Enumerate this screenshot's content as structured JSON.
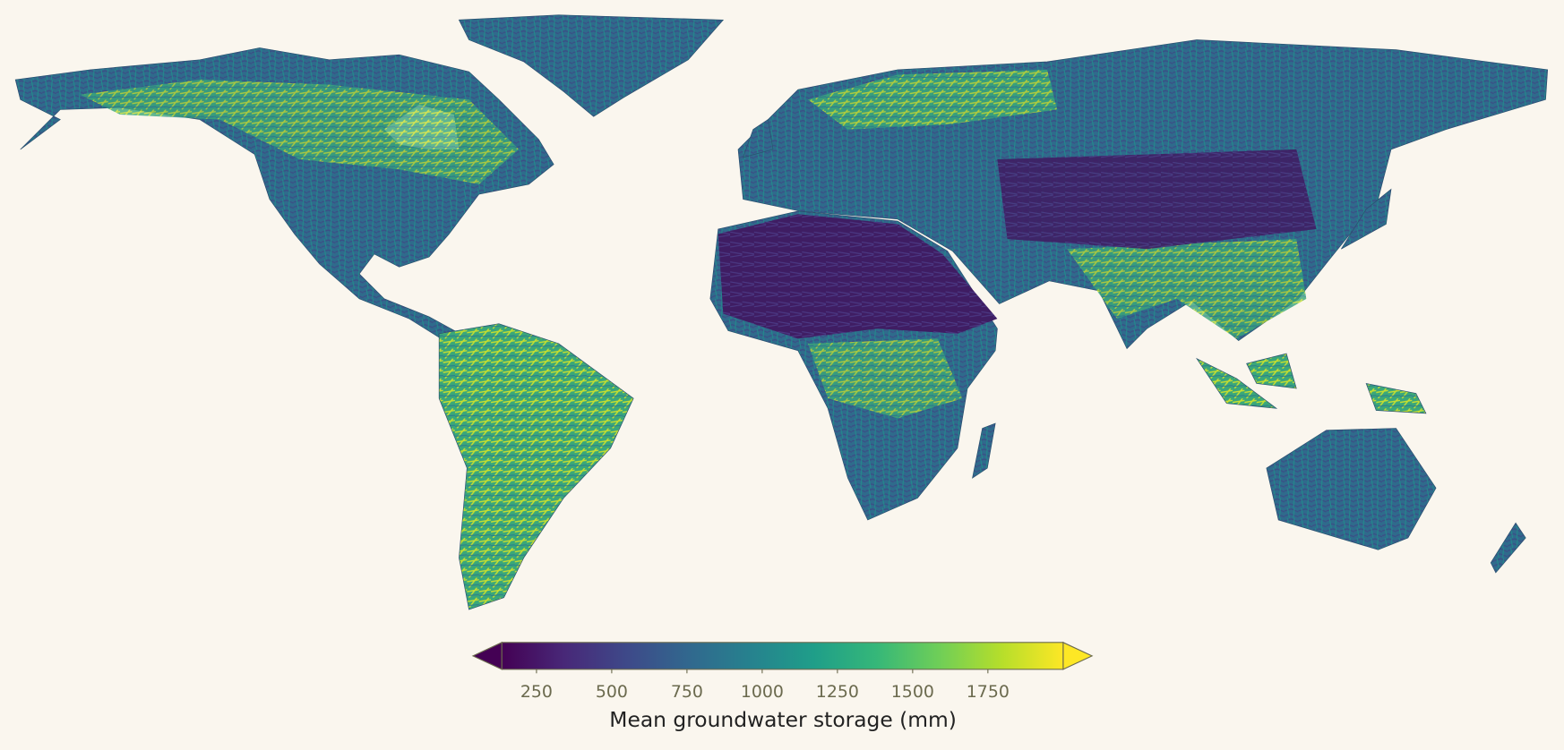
{
  "colorbar": {
    "label": "Mean groundwater storage (mm)",
    "range": [
      135,
      2000
    ],
    "ticks": [
      250,
      500,
      750,
      1000,
      1250,
      1500,
      1750
    ],
    "colormap": [
      "#440154",
      "#482878",
      "#3e4989",
      "#31688e",
      "#26828e",
      "#1f9e89",
      "#35b779",
      "#6ece58",
      "#b5de2b",
      "#fde725"
    ],
    "extend": "both"
  }
}
